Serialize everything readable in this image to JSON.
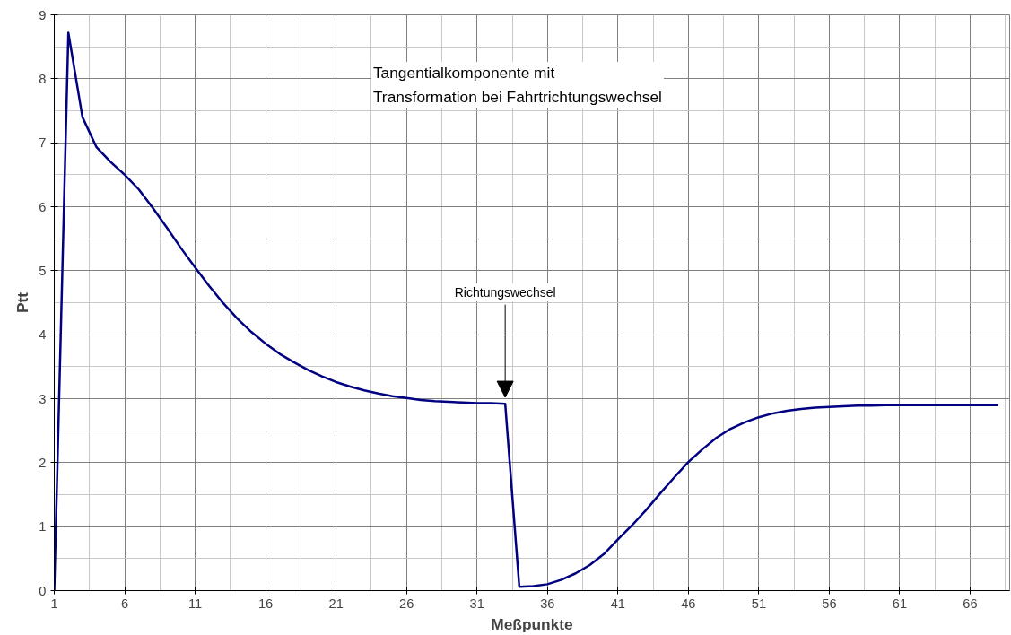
{
  "chart_data": {
    "type": "line",
    "xlabel": "Meßpunkte",
    "ylabel": "Ptt",
    "x": [
      1,
      2,
      3,
      4,
      5,
      6,
      7,
      8,
      9,
      10,
      11,
      12,
      13,
      14,
      15,
      16,
      17,
      18,
      19,
      20,
      21,
      22,
      23,
      24,
      25,
      26,
      27,
      28,
      29,
      30,
      31,
      32,
      33,
      34,
      35,
      36,
      37,
      38,
      39,
      40,
      41,
      42,
      43,
      44,
      45,
      46,
      47,
      48,
      49,
      50,
      51,
      52,
      53,
      54,
      55,
      56,
      57,
      58,
      59,
      60,
      61,
      62,
      63,
      64,
      65,
      66,
      67,
      68
    ],
    "series": [
      {
        "color": "#000080",
        "values": [
          0,
          8.72,
          7.4,
          6.93,
          6.7,
          6.5,
          6.27,
          5.98,
          5.67,
          5.35,
          5.05,
          4.76,
          4.49,
          4.25,
          4.04,
          3.86,
          3.7,
          3.57,
          3.45,
          3.35,
          3.26,
          3.19,
          3.13,
          3.08,
          3.04,
          3.01,
          2.98,
          2.96,
          2.95,
          2.94,
          2.93,
          2.93,
          2.92,
          0.06,
          0.07,
          0.1,
          0.17,
          0.27,
          0.4,
          0.57,
          0.8,
          1.02,
          1.26,
          1.52,
          1.77,
          2.01,
          2.21,
          2.39,
          2.53,
          2.63,
          2.71,
          2.77,
          2.81,
          2.84,
          2.86,
          2.87,
          2.88,
          2.89,
          2.89,
          2.9,
          2.9,
          2.9,
          2.9,
          2.9,
          2.9,
          2.9,
          2.9,
          2.9
        ]
      }
    ],
    "xlim": [
      1,
      68.8
    ],
    "xticks": [
      1,
      6,
      11,
      16,
      21,
      26,
      31,
      36,
      41,
      46,
      51,
      56,
      61,
      66
    ],
    "ylim": [
      0,
      9
    ],
    "yticks": [
      0,
      1,
      2,
      3,
      4,
      5,
      6,
      7,
      8,
      9
    ],
    "grid": true,
    "marker": "none",
    "line_style": "solid",
    "annotations": [
      "Tangentialkomponente mit\nTransformation bei Fahrtrichtungswechsel",
      {
        "text": "Richtungswechsel",
        "x": 33,
        "y": 2.92
      }
    ]
  }
}
